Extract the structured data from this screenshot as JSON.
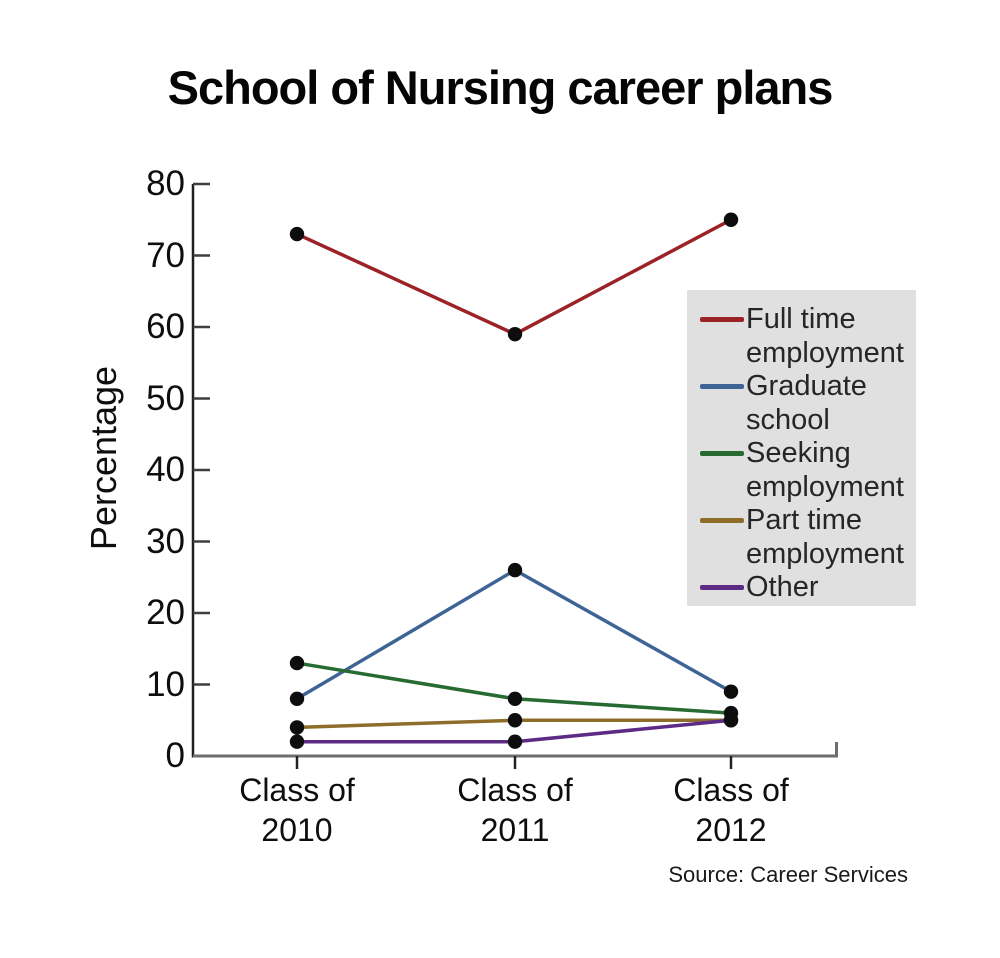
{
  "title": "School of Nursing career plans",
  "source": "Source: Career Services",
  "chart_data": {
    "type": "line",
    "title": "School of Nursing career plans",
    "xlabel": "",
    "ylabel": "Percentage",
    "ylim": [
      0,
      80
    ],
    "ytick_step": 10,
    "yticks": [
      80,
      70,
      60,
      50,
      40,
      30,
      20,
      10,
      0
    ],
    "grid": false,
    "legend_position": "right-inside",
    "legend_bg": "#E0E0E0",
    "marker": "circle",
    "marker_color": "#0D0D0D",
    "categories": [
      "Class of 2010",
      "Class of 2011",
      "Class of 2012"
    ],
    "category_lines": [
      [
        "Class of",
        "2010"
      ],
      [
        "Class of",
        "2011"
      ],
      [
        "Class of",
        "2012"
      ]
    ],
    "series": [
      {
        "name": "Full time employment",
        "legend_lines": [
          "Full time",
          "employment"
        ],
        "color": "#9B2226",
        "values": [
          73,
          59,
          75
        ]
      },
      {
        "name": "Graduate school",
        "legend_lines": [
          "Graduate",
          "school"
        ],
        "color": "#3E6495",
        "values": [
          8,
          26,
          9
        ]
      },
      {
        "name": "Seeking employment",
        "legend_lines": [
          "Seeking",
          "employment"
        ],
        "color": "#276B33",
        "values": [
          13,
          8,
          6
        ]
      },
      {
        "name": "Part time employment",
        "legend_lines": [
          "Part time",
          "employment"
        ],
        "color": "#8E6D2B",
        "values": [
          4,
          5,
          5
        ]
      },
      {
        "name": "Other",
        "legend_lines": [
          "Other"
        ],
        "color": "#5C2B85",
        "values": [
          2,
          2,
          5
        ]
      }
    ]
  }
}
